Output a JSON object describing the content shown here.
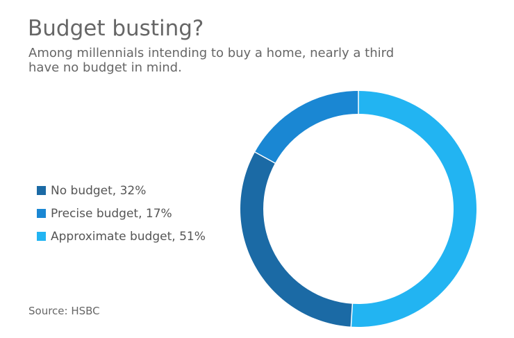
{
  "header": {
    "title": "Budget busting?",
    "subtitle_lines": [
      "Among millennials intending to buy a home, nearly a third",
      "have no budget in mind."
    ]
  },
  "source": "Source: HSBC",
  "colors": {
    "no_budget": "#1b6aa5",
    "precise_budget": "#1a87d3",
    "approximate_budget": "#22b4f2",
    "separator": "#ffffff"
  },
  "chart_data": {
    "type": "pie",
    "variant": "donut",
    "title": "Budget busting?",
    "categories": [
      "No budget",
      "Precise budget",
      "Approximate budget"
    ],
    "values": [
      32,
      17,
      51
    ],
    "unit": "%",
    "legend": {
      "placement": "left",
      "entries": [
        "No budget, 32%",
        "Precise budget, 17%",
        "Approximate budget, 51%"
      ]
    },
    "start_angle": "top (12 o'clock)",
    "direction": "clockwise from Approximate budget"
  }
}
